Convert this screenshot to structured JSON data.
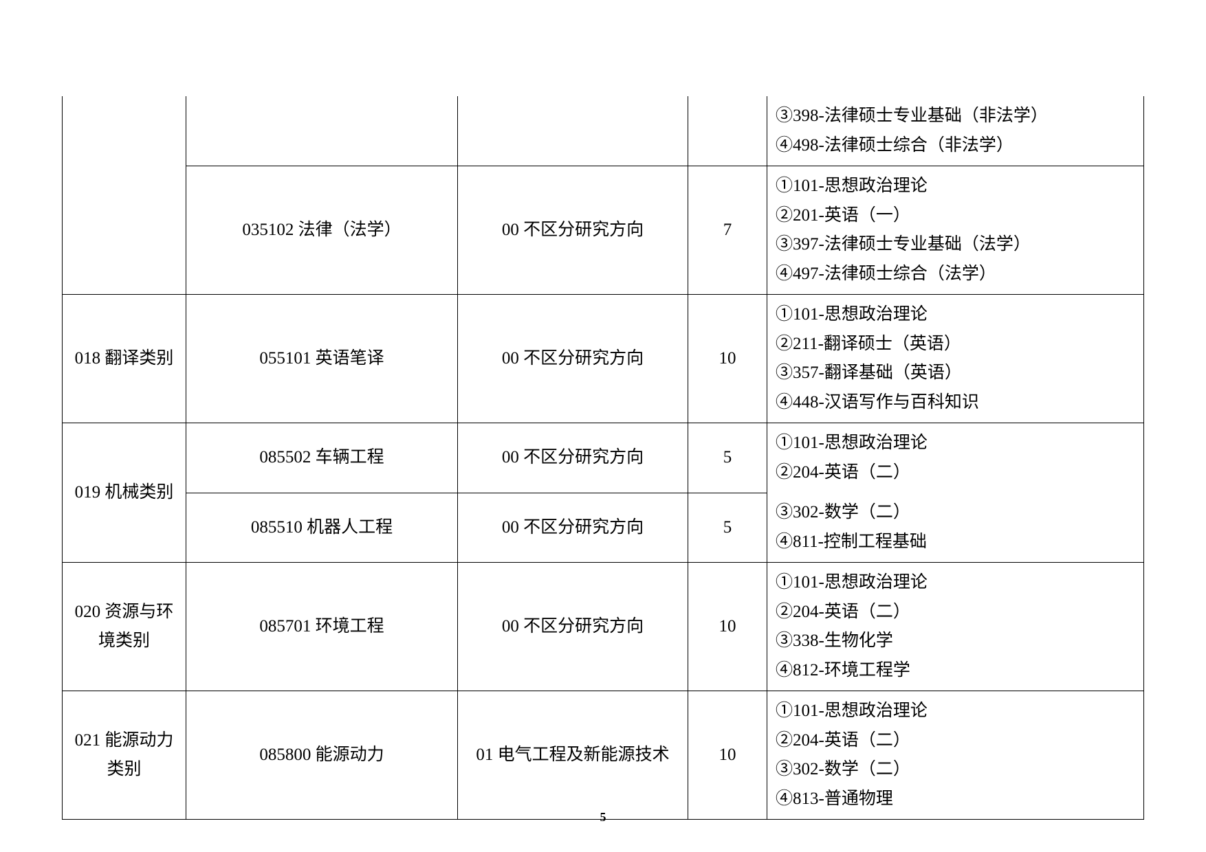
{
  "page_number": "5",
  "rows": [
    {
      "dept": "",
      "major": "",
      "direction": "",
      "num": "",
      "subjects": "③398-法律硕士专业基础（非法学）\n④498-法律硕士综合（非法学）",
      "dept_firstcol_open_top": true,
      "dept_firstcol_open_bottom": true,
      "major_open_top": true,
      "dir_open_top": true,
      "num_open_top": true,
      "subj_open_top": true
    },
    {
      "dept": "",
      "major": "035102 法律（法学）",
      "direction": "00 不区分研究方向",
      "num": "7",
      "subjects": "①101-思想政治理论\n②201-英语（一）\n③397-法律硕士专业基础（法学）\n④497-法律硕士综合（法学）",
      "dept_firstcol_open_top": true
    },
    {
      "dept": "018 翻译类别",
      "major": "055101 英语笔译",
      "direction": "00 不区分研究方向",
      "num": "10",
      "subjects": "①101-思想政治理论\n②211-翻译硕士（英语）\n③357-翻译基础（英语）\n④448-汉语写作与百科知识"
    },
    {
      "dept": "019 机械类别",
      "dept_rowspan": 2,
      "major": "085502 车辆工程",
      "direction": "00 不区分研究方向",
      "num": "5",
      "subjects": "①101-思想政治理论\n②204-英语（二）",
      "subj_open_bottom": true
    },
    {
      "major": "085510 机器人工程",
      "direction": "00 不区分研究方向",
      "num": "5",
      "subjects": "③302-数学（二）\n④811-控制工程基础",
      "subj_open_top": true
    },
    {
      "dept": "020 资源与环境类别",
      "major": "085701 环境工程",
      "direction": "00 不区分研究方向",
      "num": "10",
      "subjects": "①101-思想政治理论\n②204-英语（二）\n③338-生物化学\n④812-环境工程学"
    },
    {
      "dept": "021 能源动力类别",
      "major": "085800 能源动力",
      "direction": "01 电气工程及新能源技术",
      "num": "10",
      "subjects": "①101-思想政治理论\n②204-英语（二）\n③302-数学（二）\n④813-普通物理"
    }
  ]
}
